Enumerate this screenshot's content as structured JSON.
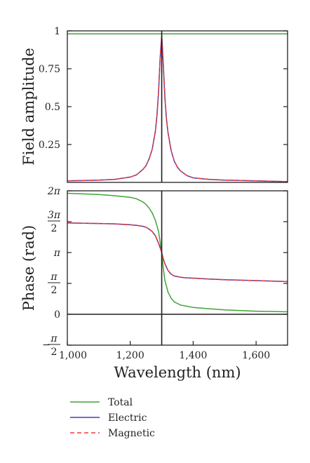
{
  "chart_data": [
    {
      "type": "line",
      "panel": "top",
      "xlim": [
        1000,
        1700
      ],
      "ylim": [
        0,
        1
      ],
      "ylabel": "Field amplitude",
      "xlabel": "",
      "yticks": [
        {
          "value": 0.25,
          "label": "0.25"
        },
        {
          "value": 0.5,
          "label": "0.5"
        },
        {
          "value": 0.75,
          "label": "0.75"
        },
        {
          "value": 1,
          "label": "1"
        }
      ],
      "vline": 1300,
      "grid": false,
      "series": [
        {
          "name": "Total",
          "color": "#3fa535",
          "dash": "solid",
          "x": [
            1000,
            1700
          ],
          "y": [
            0.98,
            0.98
          ]
        },
        {
          "name": "Electric",
          "color": "#4b3fa8",
          "dash": "solid",
          "x": [
            1000,
            1100,
            1150,
            1200,
            1220,
            1240,
            1250,
            1260,
            1270,
            1280,
            1285,
            1290,
            1295,
            1300,
            1305,
            1310,
            1315,
            1320,
            1330,
            1340,
            1350,
            1360,
            1380,
            1400,
            1450,
            1500,
            1600,
            1700
          ],
          "y": [
            0.01,
            0.015,
            0.02,
            0.035,
            0.05,
            0.085,
            0.11,
            0.155,
            0.22,
            0.34,
            0.44,
            0.6,
            0.82,
            0.97,
            0.78,
            0.56,
            0.42,
            0.33,
            0.21,
            0.14,
            0.1,
            0.075,
            0.045,
            0.03,
            0.02,
            0.015,
            0.01,
            0.005
          ]
        },
        {
          "name": "Magnetic",
          "color": "#ee3b3b",
          "dash": "dashed",
          "x": [
            1000,
            1100,
            1150,
            1200,
            1220,
            1240,
            1250,
            1260,
            1270,
            1280,
            1285,
            1290,
            1295,
            1300,
            1305,
            1310,
            1315,
            1320,
            1330,
            1340,
            1350,
            1360,
            1380,
            1400,
            1450,
            1500,
            1600,
            1700
          ],
          "y": [
            0.01,
            0.015,
            0.02,
            0.035,
            0.05,
            0.085,
            0.11,
            0.155,
            0.22,
            0.34,
            0.44,
            0.6,
            0.82,
            0.97,
            0.78,
            0.56,
            0.42,
            0.33,
            0.21,
            0.14,
            0.1,
            0.075,
            0.045,
            0.03,
            0.02,
            0.015,
            0.01,
            0.005
          ]
        }
      ]
    },
    {
      "type": "line",
      "panel": "bottom",
      "xlim": [
        1000,
        1700
      ],
      "ylim": [
        -0.5,
        2
      ],
      "yunit": "π rad",
      "ylabel": "Phase (rad)",
      "xlabel": "Wavelength (nm)",
      "xticks": [
        {
          "value": 1000,
          "label": "1,000"
        },
        {
          "value": 1200,
          "label": "1,200"
        },
        {
          "value": 1400,
          "label": "1,400"
        },
        {
          "value": 1600,
          "label": "1,600"
        }
      ],
      "yticks": [
        {
          "value": -0.5,
          "sign": "−",
          "num": "π",
          "den": "2"
        },
        {
          "value": 0,
          "label": "0"
        },
        {
          "value": 0.5,
          "num": "π",
          "den": "2"
        },
        {
          "value": 1,
          "label": "π"
        },
        {
          "value": 1.5,
          "num": "3π",
          "den": "2"
        },
        {
          "value": 2,
          "label": "2π"
        }
      ],
      "hline": 0,
      "vline": 1300,
      "grid": false,
      "series": [
        {
          "name": "Total",
          "color": "#3fa535",
          "dash": "solid",
          "x": [
            1000,
            1100,
            1150,
            1200,
            1220,
            1240,
            1250,
            1260,
            1270,
            1280,
            1290,
            1300,
            1305,
            1310,
            1320,
            1330,
            1340,
            1360,
            1380,
            1400,
            1450,
            1500,
            1600,
            1700
          ],
          "y": [
            1.96,
            1.94,
            1.92,
            1.895,
            1.87,
            1.82,
            1.78,
            1.72,
            1.64,
            1.52,
            1.34,
            1.0,
            0.75,
            0.55,
            0.36,
            0.26,
            0.2,
            0.15,
            0.13,
            0.11,
            0.09,
            0.07,
            0.05,
            0.04
          ]
        },
        {
          "name": "Electric",
          "color": "#4b3fa8",
          "dash": "solid",
          "x": [
            1000,
            1100,
            1150,
            1200,
            1220,
            1240,
            1250,
            1260,
            1270,
            1280,
            1290,
            1295,
            1300,
            1305,
            1310,
            1320,
            1330,
            1340,
            1360,
            1380,
            1400,
            1450,
            1500,
            1600,
            1700
          ],
          "y": [
            1.48,
            1.47,
            1.465,
            1.45,
            1.44,
            1.425,
            1.41,
            1.38,
            1.34,
            1.27,
            1.15,
            1.08,
            1.0,
            0.9,
            0.82,
            0.71,
            0.65,
            0.62,
            0.6,
            0.59,
            0.585,
            0.57,
            0.56,
            0.545,
            0.53
          ]
        },
        {
          "name": "Magnetic",
          "color": "#ee3b3b",
          "dash": "dashed",
          "x": [
            1000,
            1100,
            1150,
            1200,
            1220,
            1240,
            1250,
            1260,
            1270,
            1280,
            1290,
            1295,
            1300,
            1305,
            1310,
            1320,
            1330,
            1340,
            1360,
            1380,
            1400,
            1450,
            1500,
            1600,
            1700
          ],
          "y": [
            1.48,
            1.47,
            1.465,
            1.45,
            1.44,
            1.425,
            1.41,
            1.38,
            1.34,
            1.27,
            1.15,
            1.08,
            1.0,
            0.9,
            0.82,
            0.71,
            0.65,
            0.62,
            0.6,
            0.59,
            0.585,
            0.57,
            0.56,
            0.545,
            0.53
          ]
        }
      ]
    }
  ],
  "legend": {
    "placement": "bottom-left",
    "entries": [
      {
        "label": "Total",
        "color": "#3fa535",
        "dash": "solid"
      },
      {
        "label": "Electric",
        "color": "#4b3fa8",
        "dash": "solid"
      },
      {
        "label": "Magnetic",
        "color": "#ee3b3b",
        "dash": "dashed"
      }
    ]
  }
}
